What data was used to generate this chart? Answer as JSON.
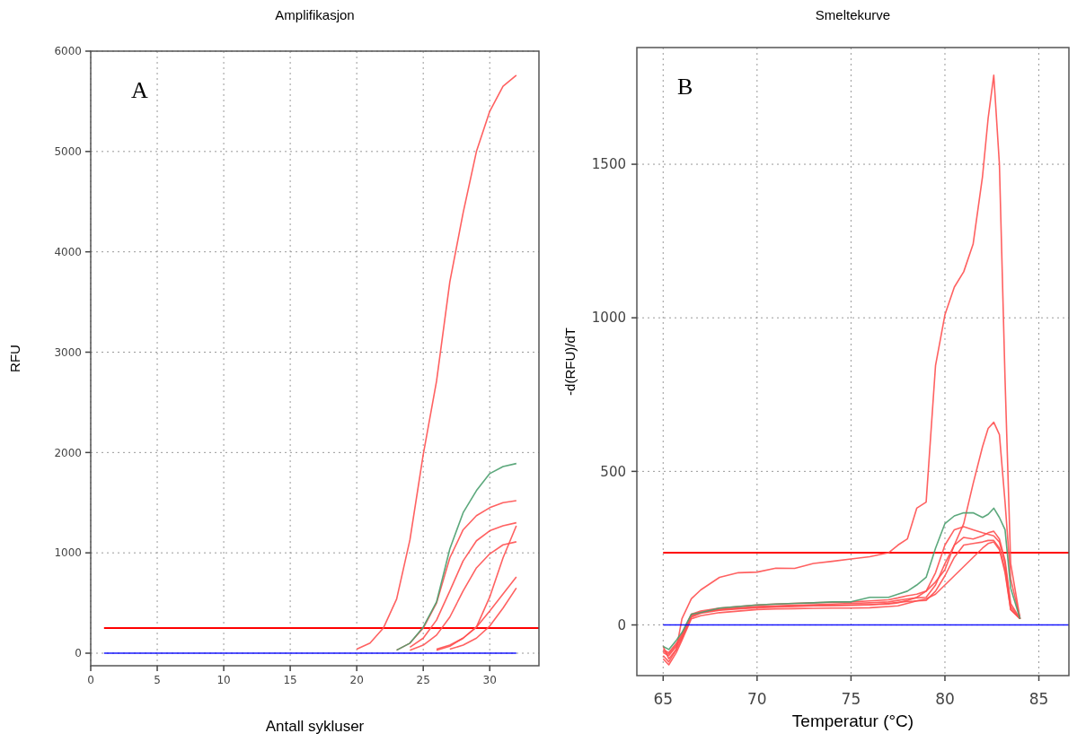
{
  "chart_data": [
    {
      "type": "line",
      "title": "Amplifikasjon",
      "xlabel": "Antall sykluser",
      "ylabel": "RFU",
      "xlim": [
        0,
        33.7
      ],
      "ylim": [
        -125,
        6000
      ],
      "xticks": [
        0,
        5,
        10,
        15,
        20,
        25,
        30
      ],
      "yticks": [
        0,
        1000,
        2000,
        3000,
        4000,
        5000,
        6000
      ],
      "grid": true,
      "annotations": [
        "A"
      ],
      "ref_lines": [
        {
          "axis": "y",
          "value": 250,
          "color": "#ff0000"
        }
      ],
      "x": [
        1,
        2,
        3,
        4,
        5,
        6,
        7,
        8,
        9,
        10,
        11,
        12,
        13,
        14,
        15,
        16,
        17,
        18,
        19,
        20,
        21,
        22,
        23,
        24,
        25,
        26,
        27,
        28,
        29,
        30,
        31,
        32
      ],
      "series": [
        {
          "color": "#ff5050",
          "values": [
            null,
            null,
            null,
            null,
            null,
            null,
            null,
            null,
            null,
            null,
            null,
            null,
            null,
            null,
            null,
            null,
            null,
            null,
            null,
            40,
            100,
            250,
            540,
            1130,
            1980,
            2710,
            3700,
            4390,
            5000,
            5400,
            5650,
            5760
          ]
        },
        {
          "color": "#ff5050",
          "values": [
            null,
            null,
            null,
            null,
            null,
            null,
            null,
            null,
            null,
            null,
            null,
            null,
            null,
            null,
            null,
            null,
            null,
            null,
            null,
            null,
            null,
            null,
            30,
            100,
            250,
            500,
            950,
            1230,
            1370,
            1450,
            1500,
            1520
          ]
        },
        {
          "color": "#ff5050",
          "values": [
            null,
            null,
            null,
            null,
            null,
            null,
            null,
            null,
            null,
            null,
            null,
            null,
            null,
            null,
            null,
            null,
            null,
            null,
            null,
            null,
            null,
            null,
            null,
            60,
            150,
            330,
            620,
            920,
            1120,
            1220,
            1270,
            1300
          ]
        },
        {
          "color": "#ff5050",
          "values": [
            null,
            null,
            null,
            null,
            null,
            null,
            null,
            null,
            null,
            null,
            null,
            null,
            null,
            null,
            null,
            null,
            null,
            null,
            null,
            null,
            null,
            null,
            null,
            30,
            80,
            180,
            360,
            620,
            850,
            990,
            1080,
            1110
          ]
        },
        {
          "color": "#ff5050",
          "values": [
            null,
            null,
            null,
            null,
            null,
            null,
            null,
            null,
            null,
            null,
            null,
            null,
            null,
            null,
            null,
            null,
            null,
            null,
            null,
            null,
            null,
            null,
            null,
            null,
            null,
            40,
            80,
            150,
            260,
            560,
            950,
            1270
          ]
        },
        {
          "color": "#ff5050",
          "values": [
            null,
            null,
            null,
            null,
            null,
            null,
            null,
            null,
            null,
            null,
            null,
            null,
            null,
            null,
            null,
            null,
            null,
            null,
            null,
            null,
            null,
            null,
            null,
            null,
            null,
            30,
            70,
            150,
            260,
            420,
            590,
            760
          ]
        },
        {
          "color": "#ff5050",
          "values": [
            null,
            null,
            null,
            null,
            null,
            null,
            null,
            null,
            null,
            null,
            null,
            null,
            null,
            null,
            null,
            null,
            null,
            null,
            null,
            null,
            null,
            null,
            null,
            null,
            null,
            null,
            40,
            80,
            150,
            270,
            450,
            650
          ]
        },
        {
          "color": "#4a9e6e",
          "values": [
            null,
            null,
            null,
            null,
            null,
            null,
            null,
            null,
            null,
            null,
            null,
            null,
            null,
            null,
            null,
            null,
            null,
            null,
            null,
            null,
            null,
            null,
            30,
            100,
            260,
            510,
            1040,
            1400,
            1620,
            1790,
            1860,
            1890
          ]
        },
        {
          "color": "#0000ff",
          "values": [
            0,
            0,
            0,
            0,
            0,
            0,
            0,
            0,
            0,
            0,
            0,
            0,
            0,
            0,
            0,
            0,
            0,
            0,
            0,
            0,
            0,
            0,
            0,
            0,
            0,
            0,
            0,
            0,
            0,
            0,
            0,
            0
          ]
        }
      ]
    },
    {
      "type": "line",
      "title": "Smeltekurve",
      "xlabel": "Temperatur (°C)",
      "ylabel": "-d(RFU)/dT",
      "xlim": [
        63.6,
        86.6
      ],
      "ylim": [
        -165,
        1880
      ],
      "xticks": [
        65,
        70,
        75,
        80,
        85
      ],
      "yticks": [
        0,
        500,
        1000,
        1500
      ],
      "grid": true,
      "annotations": [
        "B"
      ],
      "ref_lines": [
        {
          "axis": "y",
          "value": 235,
          "color": "#ff0000"
        }
      ],
      "x": [
        65,
        65.3,
        65.7,
        66,
        66.5,
        67,
        68,
        69,
        70,
        71,
        72,
        73,
        74,
        75,
        76,
        77,
        77.5,
        78,
        78.5,
        79,
        79.5,
        80,
        80.5,
        81,
        81.5,
        82,
        82.3,
        82.6,
        82.9,
        83.2,
        83.5,
        84,
        84.5,
        85,
        86,
        86.6
      ],
      "series": [
        {
          "color": "#ff5050",
          "values": [
            -70,
            -110,
            -80,
            20,
            85,
            114,
            155,
            170,
            172,
            185,
            184,
            200,
            207,
            215,
            222,
            235,
            260,
            280,
            380,
            400,
            845,
            1010,
            1100,
            1150,
            1240,
            1460,
            1650,
            1790,
            1500,
            800,
            200,
            20,
            null,
            null,
            null,
            null
          ]
        },
        {
          "color": "#ff5050",
          "values": [
            -90,
            -100,
            -70,
            -40,
            30,
            40,
            50,
            55,
            58,
            60,
            62,
            63,
            64,
            65,
            66,
            68,
            72,
            80,
            90,
            110,
            140,
            180,
            260,
            330,
            460,
            580,
            640,
            660,
            620,
            400,
            150,
            20,
            null,
            null,
            null,
            null
          ]
        },
        {
          "color": "#ff5050",
          "values": [
            -80,
            -90,
            -60,
            -30,
            35,
            45,
            55,
            60,
            65,
            68,
            70,
            72,
            74,
            75,
            78,
            82,
            88,
            95,
            100,
            110,
            170,
            260,
            310,
            320,
            310,
            300,
            295,
            290,
            270,
            200,
            60,
            20,
            null,
            null,
            null,
            null
          ]
        },
        {
          "color": "#ff5050",
          "values": [
            -85,
            -95,
            -65,
            -35,
            30,
            40,
            50,
            55,
            60,
            62,
            64,
            66,
            68,
            70,
            72,
            75,
            80,
            85,
            88,
            90,
            130,
            200,
            260,
            285,
            280,
            290,
            300,
            305,
            280,
            210,
            70,
            20,
            null,
            null,
            null,
            null
          ]
        },
        {
          "color": "#ff5050",
          "values": [
            -100,
            -120,
            -80,
            -45,
            25,
            38,
            48,
            52,
            56,
            58,
            60,
            62,
            63,
            64,
            66,
            70,
            74,
            76,
            78,
            80,
            110,
            160,
            220,
            260,
            265,
            270,
            275,
            275,
            250,
            180,
            50,
            20,
            null,
            null,
            null,
            null
          ]
        },
        {
          "color": "#ff5050",
          "values": [
            -110,
            -130,
            -90,
            -50,
            20,
            30,
            40,
            45,
            50,
            52,
            53,
            54,
            55,
            55,
            56,
            60,
            62,
            70,
            78,
            85,
            100,
            130,
            160,
            190,
            220,
            250,
            265,
            270,
            245,
            170,
            50,
            20,
            null,
            null,
            null,
            null
          ]
        },
        {
          "color": "#4a9e6e",
          "values": [
            -70,
            -80,
            -50,
            -25,
            35,
            40,
            55,
            60,
            65,
            68,
            70,
            72,
            75,
            75,
            90,
            90,
            100,
            110,
            130,
            155,
            250,
            330,
            355,
            365,
            365,
            350,
            360,
            380,
            350,
            310,
            120,
            20,
            null,
            null,
            null,
            null
          ]
        },
        {
          "color": "#0000ff",
          "values": [
            0,
            0,
            0,
            0,
            0,
            0,
            0,
            0,
            0,
            0,
            0,
            0,
            0,
            0,
            0,
            0,
            0,
            0,
            0,
            0,
            0,
            0,
            0,
            0,
            0,
            0,
            0,
            0,
            0,
            0,
            0,
            0,
            0,
            0,
            0,
            0
          ]
        }
      ]
    }
  ]
}
